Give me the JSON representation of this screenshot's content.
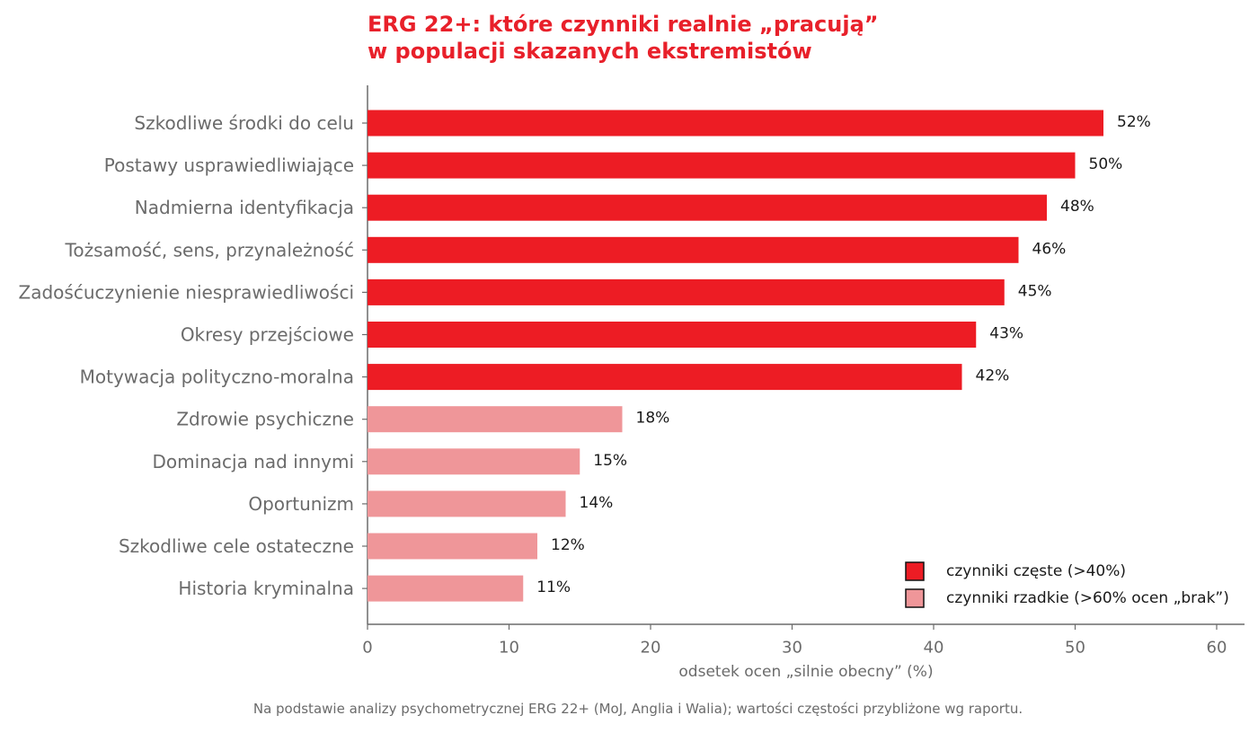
{
  "title_line1": "ERG 22+: które czynniki realnie „pracują”",
  "title_line2": "w populacji skazanych ekstremistów",
  "footnote": "Na podstawie analizy psychometrycznej ERG 22+ (MoJ, Anglia i Walia); wartości częstości przybliżone wg raportu.",
  "colors": {
    "frequent": "#ed1c24",
    "rare": "#ef9699",
    "title": "#e8202a",
    "axis": "#6b6b6b"
  },
  "chart_data": {
    "type": "bar",
    "orientation": "horizontal",
    "categories": [
      "Szkodliwe środki do celu",
      "Postawy usprawiedliwiające",
      "Nadmierna identyfikacja",
      "Tożsamość, sens, przynależność",
      "Zadośćuczynienie niesprawiedliwości",
      "Okresy przejściowe",
      "Motywacja polityczno-moralna",
      "Zdrowie psychiczne",
      "Dominacja nad innymi",
      "Oportunizm",
      "Szkodliwe cele ostateczne",
      "Historia kryminalna"
    ],
    "values": [
      52,
      50,
      48,
      46,
      45,
      43,
      42,
      18,
      15,
      14,
      12,
      11
    ],
    "value_labels": [
      "52%",
      "50%",
      "48%",
      "46%",
      "45%",
      "43%",
      "42%",
      "18%",
      "15%",
      "14%",
      "12%",
      "11%"
    ],
    "groups": [
      "frequent",
      "frequent",
      "frequent",
      "frequent",
      "frequent",
      "frequent",
      "frequent",
      "rare",
      "rare",
      "rare",
      "rare",
      "rare"
    ],
    "legend": [
      {
        "key": "frequent",
        "label": "czynniki częste (>40%)"
      },
      {
        "key": "rare",
        "label": "czynniki rzadkie (>60% ocen „brak”)"
      }
    ],
    "legend_position": "bottom-right",
    "xlabel": "odsetek ocen „silnie obecny” (%)",
    "xlim": [
      0,
      62
    ],
    "xticks": [
      0,
      10,
      20,
      30,
      40,
      50,
      60
    ],
    "xtick_labels": [
      "0",
      "10",
      "20",
      "30",
      "40",
      "50",
      "60"
    ],
    "grid": false
  }
}
